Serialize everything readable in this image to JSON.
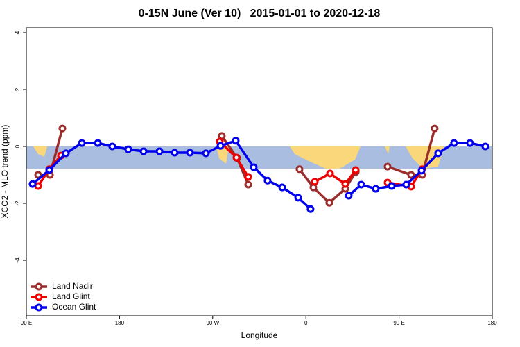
{
  "chart_data": {
    "type": "line",
    "title": "0-15N June (Ver 10)   2015-01-01 to 2020-12-18",
    "xlabel": "Longitude",
    "ylabel": "XCO2 - MLO trend (ppm)",
    "xlim": [
      90,
      540
    ],
    "ylim": [
      -5.95,
      4.17
    ],
    "xticks": [
      {
        "value": 90,
        "label": "90 E"
      },
      180,
      {
        "value": 270,
        "label": "90 W"
      },
      {
        "value": 360,
        "label": "0"
      },
      {
        "value": 450,
        "label": "90 E"
      },
      {
        "value": 540,
        "label": "180"
      }
    ],
    "yticks": [
      -4,
      -2,
      0,
      2,
      4
    ],
    "legend": "bottom-left",
    "series": [
      {
        "name": "Land Nadir",
        "color": "#9b2d2d",
        "x": [
          101.4,
          112.8,
          124.8,
          null,
          278.8,
          293.6,
          304.3,
          null,
          353.8,
          367.2,
          382.6,
          398,
          408.1,
          null,
          438.9,
          461.6,
          472.3,
          484.4
        ],
        "values": [
          -1.0,
          -1.0,
          0.63,
          null,
          0.37,
          -0.41,
          -1.34,
          null,
          -0.8,
          -1.44,
          -1.98,
          -1.49,
          -0.9,
          null,
          -0.71,
          -1.0,
          -1.0,
          0.63
        ]
      },
      {
        "name": "Land Glint",
        "color": "#ee0000",
        "x": [
          101.4,
          112.1,
          123.5,
          null,
          276.8,
          292.9,
          304.3,
          null,
          368.6,
          383.3,
          398,
          408.1,
          null,
          438.9,
          461.6,
          472.3
        ],
        "values": [
          -1.39,
          -0.8,
          -0.32,
          null,
          0.17,
          -0.39,
          -1.07,
          null,
          -1.24,
          -0.95,
          -1.32,
          -0.83,
          null,
          -1.27,
          -1.41,
          -0.8
        ]
      },
      {
        "name": "Ocean Glint",
        "color": "#0000ee",
        "x": [
          96.0,
          112.1,
          128.2,
          143.6,
          159.0,
          173.0,
          188.4,
          203.2,
          218.6,
          233.3,
          248.0,
          263.4,
          277.5,
          292.2,
          309.6,
          323.0,
          337.1,
          352.5,
          364.5,
          null,
          401.4,
          413.4,
          427.5,
          442.9,
          456.9,
          471.7,
          487.7,
          503.1,
          518.5,
          533.3
        ],
        "values": [
          -1.32,
          -0.83,
          -0.24,
          0.12,
          0.12,
          0,
          -0.1,
          -0.17,
          -0.17,
          -0.22,
          -0.22,
          -0.24,
          0.02,
          0.2,
          -0.73,
          -1.2,
          -1.44,
          -1.8,
          -2.2,
          null,
          -1.73,
          -1.34,
          -1.49,
          -1.39,
          -1.34,
          -0.85,
          -0.24,
          0.12,
          0.12,
          0
        ]
      }
    ]
  }
}
